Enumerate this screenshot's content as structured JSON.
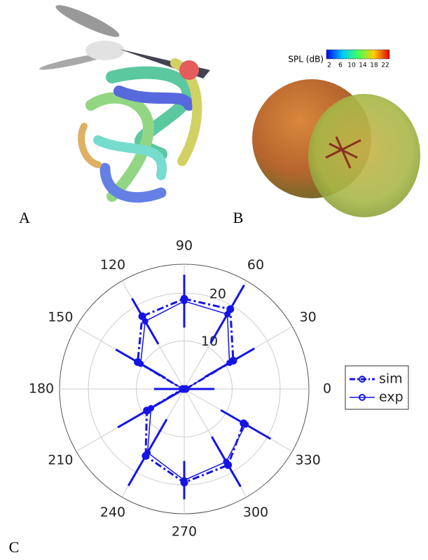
{
  "panel_labels": [
    "A",
    "B",
    "C"
  ],
  "colorbar": {
    "label": "SPL (dB)",
    "lim": [
      2,
      22
    ],
    "ticks": [
      2,
      6,
      10,
      14,
      18,
      22
    ]
  },
  "chart_data": {
    "type": "polar",
    "theta": [
      0,
      30,
      60,
      90,
      120,
      150,
      180,
      210,
      240,
      270,
      300,
      330
    ],
    "thetaticks": [
      0,
      30,
      60,
      90,
      120,
      150,
      180,
      210,
      240,
      270,
      300,
      330
    ],
    "rlim": [
      0,
      26
    ],
    "rticks": [
      10,
      20
    ],
    "grid": true,
    "legend": "right",
    "series": [
      {
        "name": "sim",
        "color": "#1414e6",
        "values": [
          0.3,
          11.8,
          19.2,
          18.8,
          17.5,
          11.2,
          0.3,
          9.0,
          16.1,
          19.5,
          18.3,
          14.3
        ]
      },
      {
        "name": "exp",
        "color": "#1414e6",
        "values": [
          0.3,
          10.9,
          18.0,
          18.3,
          16.3,
          10.5,
          0.3,
          8.0,
          15.3,
          19.0,
          17.5,
          14.8
        ],
        "errors": [
          6,
          6,
          7,
          5.5,
          5.5,
          6,
          6,
          8,
          8,
          4,
          6,
          6
        ]
      }
    ]
  }
}
